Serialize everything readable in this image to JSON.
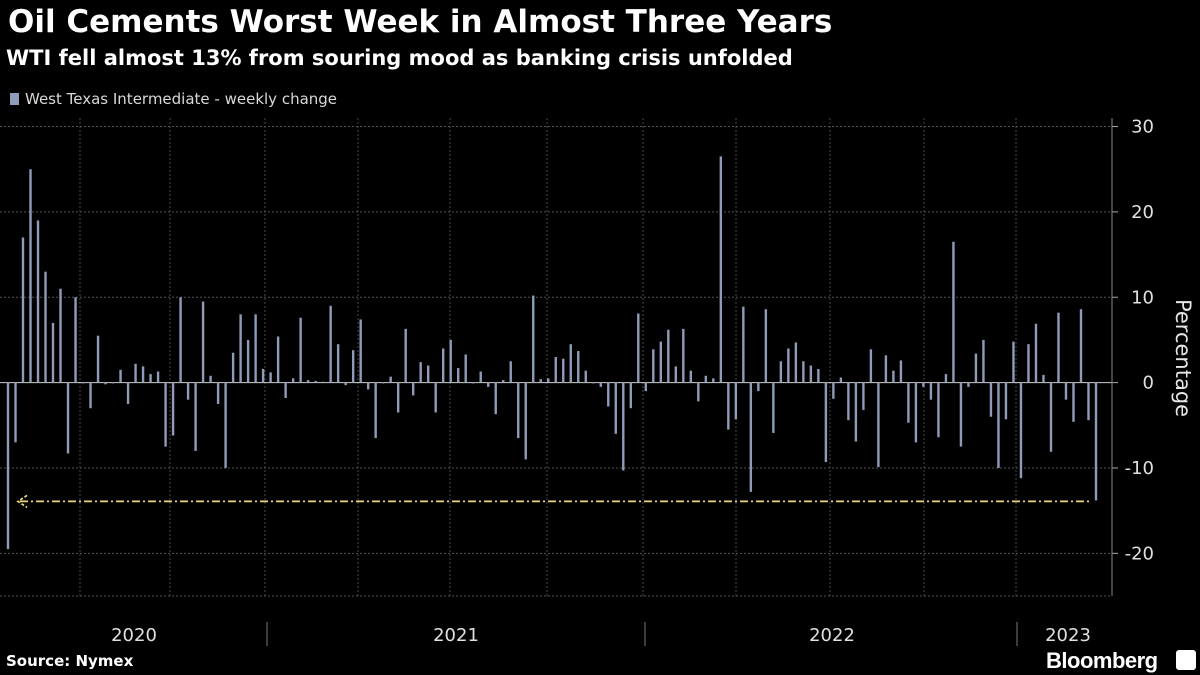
{
  "title": "Oil Cements Worst Week in Almost Three Years",
  "subtitle": "WTI fell almost 13% from souring mood as banking crisis unfolded",
  "source": "Source: Nymex",
  "brand": "Bloomberg",
  "chart_data": {
    "type": "bar",
    "legend": [
      {
        "name": "West Texas Intermediate - weekly change",
        "color": "#8e9cb8"
      }
    ],
    "ylabel": "Percentage",
    "ylim": [
      -25,
      31
    ],
    "yticks": [
      30,
      20,
      10,
      0,
      -10,
      -20
    ],
    "x_tick_labels": [
      "2020",
      "2021",
      "2022",
      "2023"
    ],
    "grid": true,
    "bar_color": "#8e9cb8",
    "annotation": {
      "type": "dashed-arrow-line",
      "color": "#e6d87a",
      "y": -13.8
    },
    "series": [
      {
        "name": "West Texas Intermediate - weekly change",
        "values": [
          -19.5,
          -7,
          17,
          25,
          19,
          13,
          7,
          11,
          -8.3,
          10,
          0,
          -3,
          5.5,
          -0.2,
          0,
          1.5,
          -2.5,
          2.2,
          1.9,
          1,
          1.3,
          -7.5,
          -6.2,
          10,
          -2,
          -8,
          9.5,
          0.8,
          -2.5,
          -10,
          3.5,
          8,
          5,
          8,
          1.6,
          1.2,
          5.4,
          -1.8,
          0.5,
          7.6,
          0.3,
          0.2,
          0.1,
          9,
          4.5,
          -0.3,
          3.8,
          7.4,
          -0.8,
          -6.5,
          0,
          0.7,
          -3.5,
          6.3,
          -1.5,
          2.4,
          2,
          -3.5,
          4,
          5,
          1.7,
          3.3,
          0,
          1.3,
          -0.5,
          -3.7,
          0.3,
          2.5,
          -6.5,
          -9,
          10.2,
          0.4,
          0.5,
          3,
          2.8,
          4.5,
          3.7,
          1.4,
          0,
          -0.5,
          -2.8,
          -6,
          -10.3,
          -3,
          8.1,
          -1,
          3.9,
          4.8,
          6.2,
          1.9,
          6.3,
          1.4,
          -2.2,
          0.8,
          0.5,
          26.5,
          -5.5,
          -4.3,
          8.9,
          -12.8,
          -1,
          8.6,
          -5.9,
          2.5,
          4,
          4.7,
          2.5,
          2,
          1.6,
          -9.3,
          -1.9,
          0.6,
          -4.4,
          -6.9,
          -3.2,
          3.9,
          -9.9,
          3.2,
          1.4,
          2.6,
          -4.7,
          -7,
          -0.5,
          -2,
          -6.4,
          1,
          16.5,
          -7.5,
          -0.5,
          3.4,
          5,
          -4,
          -10,
          -4.3,
          4.8,
          -11.2,
          4.5,
          6.9,
          0.9,
          -8.1,
          8.2,
          -2,
          -4.6,
          8.6,
          -4.4,
          -13.8
        ]
      }
    ]
  }
}
